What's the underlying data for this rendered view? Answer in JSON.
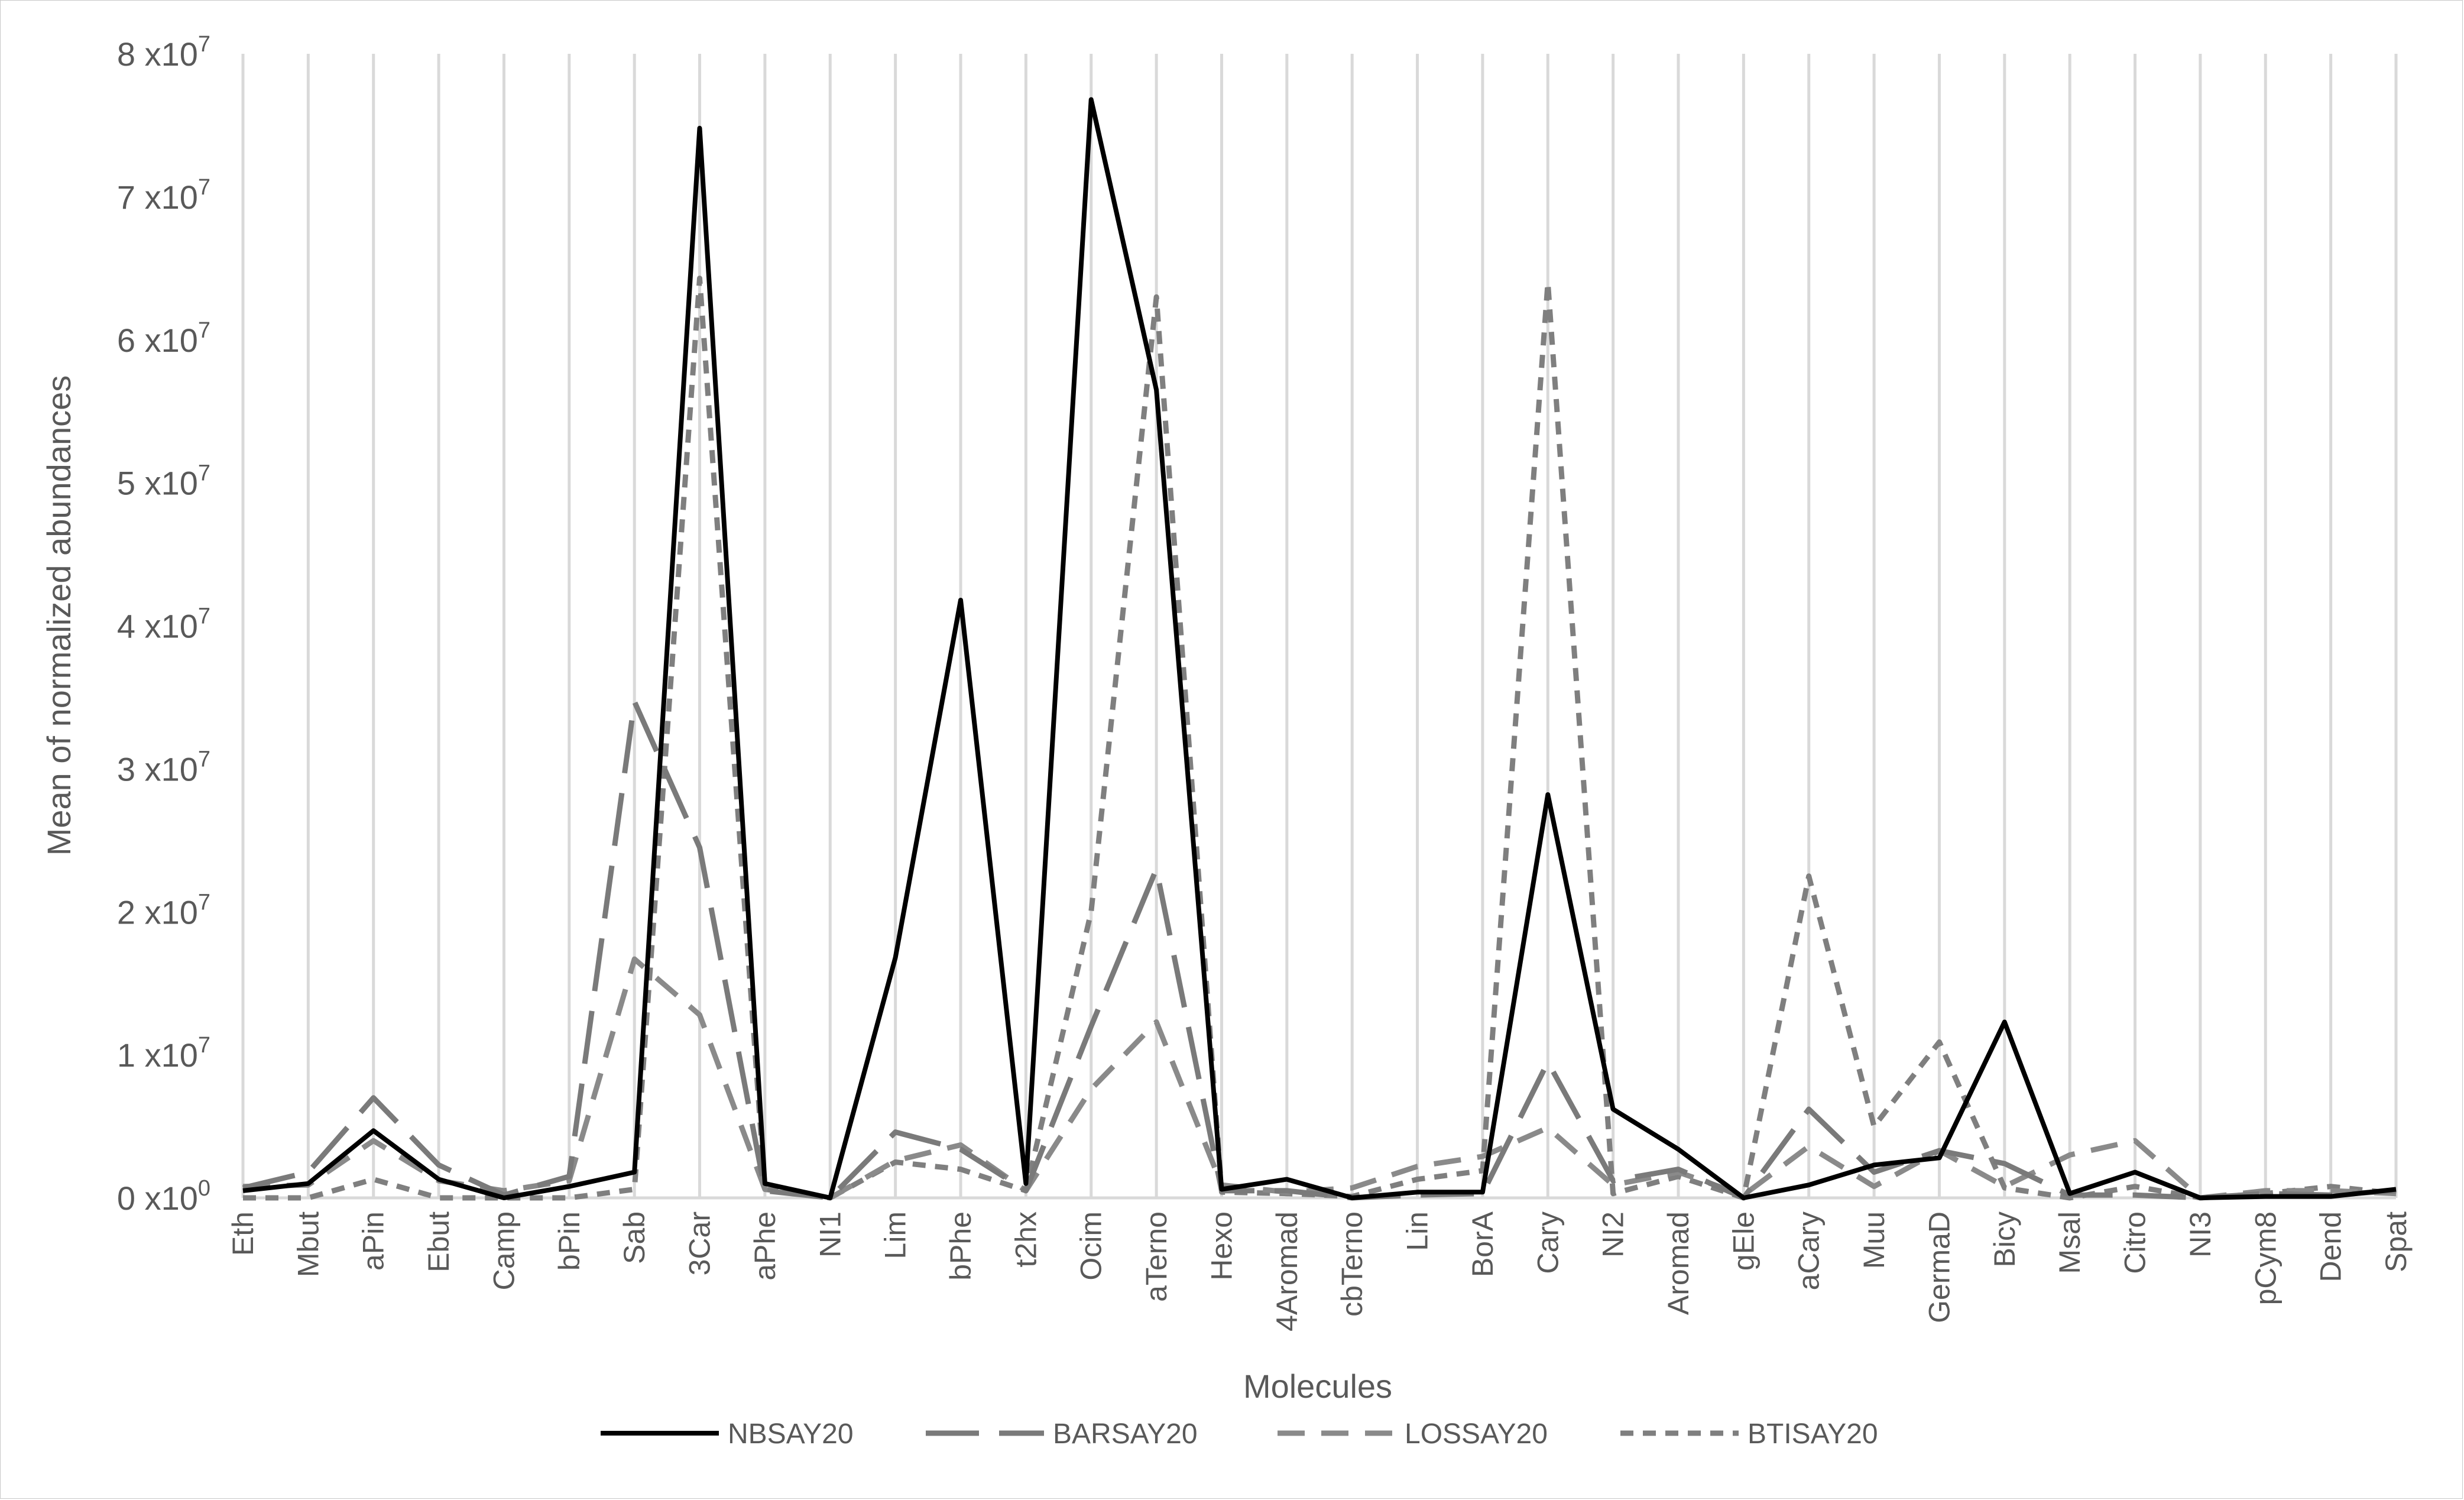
{
  "chart_data": {
    "type": "line",
    "title": "",
    "xlabel": "Molecules",
    "ylabel": "Mean of normalized abundances",
    "ylim": [
      0,
      80000000
    ],
    "y_ticks": [
      {
        "value": 0,
        "mantissa": "0",
        "base": "x10",
        "exp": "0"
      },
      {
        "value": 10000000,
        "mantissa": "1",
        "base": "x10",
        "exp": "7"
      },
      {
        "value": 20000000,
        "mantissa": "2",
        "base": "x10",
        "exp": "7"
      },
      {
        "value": 30000000,
        "mantissa": "3",
        "base": "x10",
        "exp": "7"
      },
      {
        "value": 40000000,
        "mantissa": "4",
        "base": "x10",
        "exp": "7"
      },
      {
        "value": 50000000,
        "mantissa": "5",
        "base": "x10",
        "exp": "7"
      },
      {
        "value": 60000000,
        "mantissa": "6",
        "base": "x10",
        "exp": "7"
      },
      {
        "value": 70000000,
        "mantissa": "7",
        "base": "x10",
        "exp": "7"
      },
      {
        "value": 80000000,
        "mantissa": "8",
        "base": "x10",
        "exp": "7"
      }
    ],
    "grid": "vertical",
    "legend_position": "bottom",
    "categories": [
      "Eth",
      "Mbut",
      "aPin",
      "Ebut",
      "Camp",
      "bPin",
      "Sab",
      "3Car",
      "aPhe",
      "NI1",
      "Lim",
      "bPhe",
      "t2hx",
      "Ocim",
      "aTerno",
      "Hexo",
      "4Aromad",
      "cbTerno",
      "Lin",
      "BorA",
      "Cary",
      "NI2",
      "Aromad",
      "gEle",
      "aCary",
      "Muu",
      "GermaD",
      "Bicy",
      "Msal",
      "Citro",
      "NI3",
      "pCym8",
      "Dend",
      "Spat"
    ],
    "series": [
      {
        "name": "NBSAY20",
        "color": "#000000",
        "dash": "solid",
        "values": [
          500000,
          1000000,
          4700000,
          1300000,
          0,
          800000,
          1800000,
          74800000,
          1000000,
          0,
          16800000,
          41800000,
          1000000,
          76800000,
          56500000,
          600000,
          1300000,
          0,
          400000,
          400000,
          28200000,
          6200000,
          3400000,
          0,
          900000,
          2300000,
          2800000,
          12300000,
          300000,
          1800000,
          0,
          100000,
          100000,
          600000
        ]
      },
      {
        "name": "BARSAY20",
        "color": "#7a7a7a",
        "dash": "long",
        "values": [
          700000,
          1800000,
          7000000,
          2300000,
          200000,
          1500000,
          34700000,
          24500000,
          500000,
          0,
          4600000,
          3400000,
          500000,
          12000000,
          23000000,
          500000,
          500000,
          0,
          200000,
          300000,
          9500000,
          1200000,
          2000000,
          0,
          6200000,
          1800000,
          3300000,
          2400000,
          200000,
          200000,
          0,
          300000,
          200000,
          500000
        ]
      },
      {
        "name": "LOSSAY20",
        "color": "#8a8a8a",
        "dash": "medium",
        "values": [
          800000,
          900000,
          4000000,
          1200000,
          500000,
          1200000,
          16700000,
          12800000,
          600000,
          0,
          2600000,
          3700000,
          500000,
          7600000,
          12300000,
          900000,
          400000,
          700000,
          2200000,
          2900000,
          4900000,
          900000,
          1800000,
          200000,
          3600000,
          800000,
          3300000,
          800000,
          3000000,
          4000000,
          0,
          500000,
          500000,
          300000
        ]
      },
      {
        "name": "BTISAY20",
        "color": "#7f7f7f",
        "dash": "short",
        "values": [
          0,
          0,
          1300000,
          0,
          0,
          0,
          600000,
          64300000,
          600000,
          0,
          2500000,
          2000000,
          500000,
          20000000,
          63000000,
          400000,
          300000,
          100000,
          1300000,
          1900000,
          64000000,
          300000,
          1500000,
          0,
          22500000,
          5000000,
          10900000,
          700000,
          0,
          800000,
          0,
          300000,
          800000,
          300000
        ]
      }
    ]
  }
}
